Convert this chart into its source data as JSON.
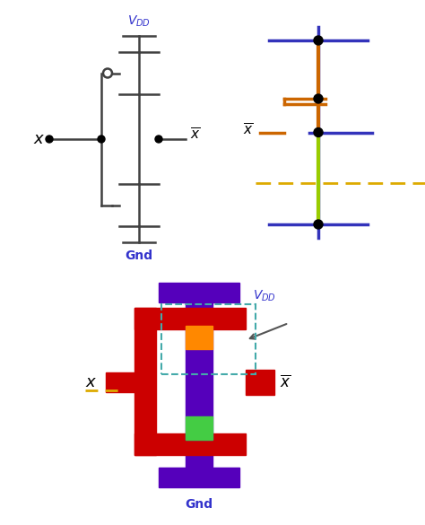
{
  "bg_color": "#ffffff",
  "top_left": {
    "schematic_color": "#404040",
    "vdd_color": "#3333cc",
    "gnd_color": "#3333cc"
  },
  "top_right": {
    "blue_color": "#3333bb",
    "orange_color": "#cc6600",
    "green_color": "#99cc00",
    "dot_color": "#000000",
    "dashed_color": "#ddaa00"
  },
  "bottom": {
    "purple_color": "#5500bb",
    "red_color": "#cc0000",
    "orange_color": "#ff8800",
    "green_color": "#44cc44",
    "dashed_teal": "#44aaaa",
    "arrow_color": "#555555",
    "vdd_color": "#3333cc",
    "gnd_color": "#3333cc",
    "dashed_orange": "#ddaa00"
  }
}
